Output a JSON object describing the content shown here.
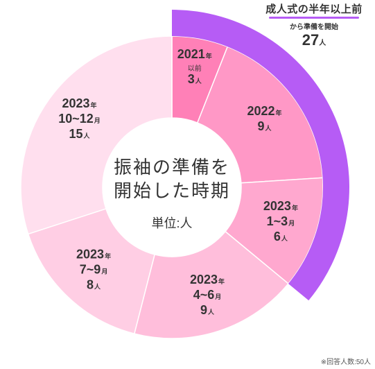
{
  "chart_data": {
    "type": "pie",
    "title": "振袖の準備を開始した時期",
    "unit_label": "単位:人",
    "unit": "人",
    "year_unit": "年",
    "month_unit": "月",
    "slices": [
      {
        "year": "2021",
        "period": "以前",
        "value": 3,
        "color": "#ff80b7"
      },
      {
        "year": "2022",
        "period": "",
        "value": 9,
        "color": "#ff98c6"
      },
      {
        "year": "2023",
        "period": "1~3",
        "value": 6,
        "color": "#ffa8cf"
      },
      {
        "year": "2023",
        "period": "4~6",
        "value": 9,
        "color": "#ffbedb"
      },
      {
        "year": "2023",
        "period": "7~9",
        "value": 8,
        "color": "#ffcee4"
      },
      {
        "year": "2023",
        "period": "10~12",
        "value": 15,
        "color": "#ffdfee"
      }
    ],
    "highlight": {
      "title": "成人式の半年以上前",
      "subtitle": "から準備を開始",
      "total": "27",
      "unit": "人",
      "covers_slices": 3,
      "color": "#b65cf5"
    },
    "footnote": "※回答人数:50人"
  }
}
